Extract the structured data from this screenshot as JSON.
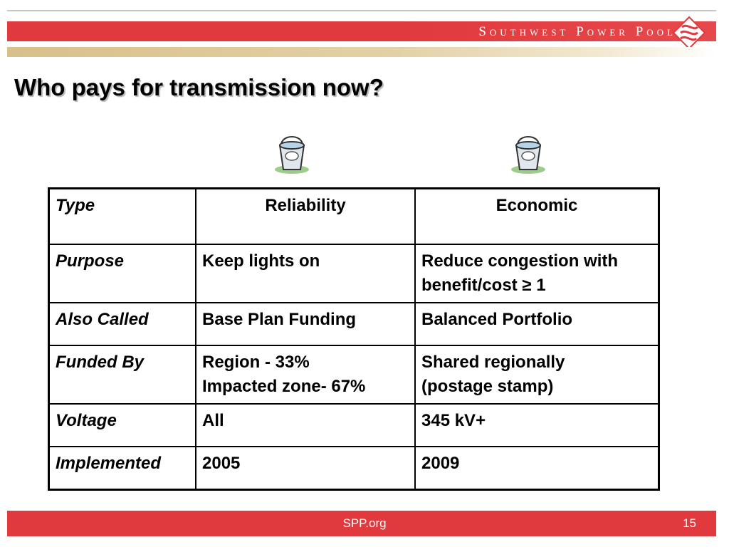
{
  "header": {
    "company_name": "Southwest Power Pool",
    "logo_icon": "spp-diamond-logo-icon"
  },
  "slide": {
    "title": "Who pays for transmission now?"
  },
  "icons": {
    "bucket_reliability": "bucket-icon",
    "bucket_economic": "bucket-icon"
  },
  "table": {
    "header": {
      "label": "Type",
      "col1": "Reliability",
      "col2": "Economic"
    },
    "rows": [
      {
        "label": "Purpose",
        "col1": "Keep lights on",
        "col2": "Reduce congestion with benefit/cost ≥ 1"
      },
      {
        "label": "Also Called",
        "col1": "Base Plan Funding",
        "col2": "Balanced Portfolio"
      },
      {
        "label": "Funded By",
        "col1_line1": "Region - 33%",
        "col1_line2": "Impacted zone- 67%",
        "col2_line1": "Shared regionally",
        "col2_line2": "(postage stamp)"
      },
      {
        "label": "Voltage",
        "col1": "All",
        "col2": "345 kV+"
      },
      {
        "label": "Implemented",
        "col1": "2005",
        "col2": "2009"
      }
    ]
  },
  "footer": {
    "site": "SPP.org",
    "page_number": "15"
  },
  "colors": {
    "accent_red": "#e03a3e",
    "gold_band": "#d8c08a"
  }
}
